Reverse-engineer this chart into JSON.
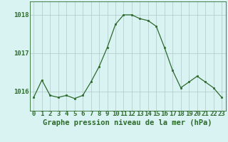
{
  "x": [
    0,
    1,
    2,
    3,
    4,
    5,
    6,
    7,
    8,
    9,
    10,
    11,
    12,
    13,
    14,
    15,
    16,
    17,
    18,
    19,
    20,
    21,
    22,
    23
  ],
  "y": [
    1015.85,
    1016.3,
    1015.9,
    1015.85,
    1015.9,
    1015.82,
    1015.9,
    1016.25,
    1016.65,
    1017.15,
    1017.75,
    1018.0,
    1018.0,
    1017.9,
    1017.85,
    1017.7,
    1017.15,
    1016.55,
    1016.1,
    1016.25,
    1016.4,
    1016.25,
    1016.1,
    1015.85
  ],
  "line_color": "#2d6a2d",
  "marker": "s",
  "marker_size": 2,
  "bg_color": "#d9f2f2",
  "plot_bg_color": "#d9f2f2",
  "grid_color": "#b0c8c8",
  "xlabel": "Graphe pression niveau de la mer (hPa)",
  "xlabel_fontsize": 7.5,
  "yticks": [
    1016,
    1017,
    1018
  ],
  "xtick_labels": [
    "0",
    "1",
    "2",
    "3",
    "4",
    "5",
    "6",
    "7",
    "8",
    "9",
    "10",
    "11",
    "12",
    "13",
    "14",
    "15",
    "16",
    "17",
    "18",
    "19",
    "20",
    "21",
    "22",
    "23"
  ],
  "ylim": [
    1015.5,
    1018.35
  ],
  "xlim": [
    -0.5,
    23.5
  ],
  "tick_color": "#2d6a2d",
  "tick_fontsize": 6.5,
  "border_color": "#2d6a2d",
  "linewidth": 0.9
}
